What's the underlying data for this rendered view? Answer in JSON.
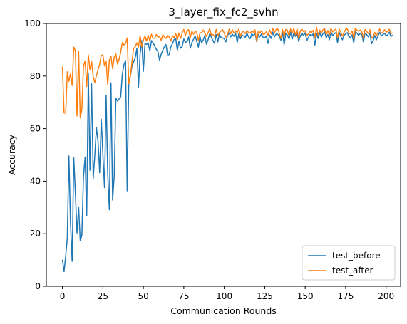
{
  "chart_data": {
    "type": "line",
    "title": "3_layer_fix_fc2_svhn",
    "xlabel": "Communication Rounds",
    "ylabel": "Accuracy",
    "xlim": [
      -9.95,
      208.95
    ],
    "ylim": [
      0,
      100
    ],
    "xticks": [
      "0",
      "25",
      "50",
      "75",
      "100",
      "125",
      "150",
      "175",
      "200"
    ],
    "yticks": [
      "0",
      "20",
      "40",
      "60",
      "80",
      "100"
    ],
    "grid": false,
    "legend_position": "lower-right",
    "series": [
      {
        "name": "test_before",
        "color": "#1f77b4",
        "values": [
          10.1,
          5.6,
          11.4,
          18.3,
          49.6,
          23.8,
          9.5,
          48.9,
          35.6,
          20.3,
          30.2,
          17.3,
          19.4,
          41.8,
          49.2,
          26.8,
          80.9,
          44.1,
          77.3,
          40.9,
          50.0,
          60.4,
          55.0,
          43.2,
          63.6,
          50.0,
          37.5,
          72.6,
          42.4,
          29.1,
          77.4,
          32.8,
          42.1,
          71.5,
          70.5,
          71.3,
          72.1,
          80.6,
          84.3,
          85.9,
          36.3,
          78.0,
          80.1,
          83.9,
          85.4,
          87.0,
          90.6,
          75.8,
          88.5,
          93.5,
          81.8,
          92.4,
          92.0,
          92.6,
          89.6,
          93.5,
          92.7,
          91.4,
          90.2,
          89.4,
          86.0,
          88.3,
          89.8,
          91.2,
          92.0,
          88.0,
          88.2,
          91.2,
          92.3,
          93.9,
          94.4,
          89.8,
          93.3,
          90.6,
          91.2,
          94.1,
          92.8,
          93.1,
          94.9,
          90.6,
          92.7,
          94.0,
          95.3,
          93.2,
          91.0,
          95.0,
          92.6,
          93.7,
          95.4,
          92.1,
          93.8,
          96.1,
          94.9,
          93.5,
          92.4,
          95.8,
          93.0,
          95.9,
          94.7,
          94.5,
          94.2,
          93.0,
          95.4,
          96.4,
          94.9,
          95.9,
          95.1,
          96.4,
          92.8,
          96.2,
          94.2,
          95.6,
          95.2,
          94.7,
          96.3,
          94.9,
          94.2,
          96.1,
          95.3,
          96.4,
          93.1,
          95.8,
          94.9,
          96.0,
          94.7,
          94.5,
          95.3,
          92.4,
          95.6,
          94.3,
          96.7,
          94.9,
          96.0,
          95.9,
          95.2,
          93.6,
          96.6,
          92.0,
          96.2,
          95.6,
          94.1,
          96.7,
          94.1,
          96.4,
          95.1,
          96.5,
          93.2,
          95.2,
          96.3,
          95.4,
          96.5,
          93.5,
          94.7,
          95.8,
          95.3,
          96.1,
          91.8,
          96.3,
          94.3,
          96.6,
          94.8,
          96.2,
          96.8,
          94.6,
          95.8,
          93.8,
          96.7,
          95.4,
          96.1,
          96.6,
          92.7,
          96.6,
          95.1,
          93.8,
          95.4,
          96.1,
          96.5,
          95.1,
          94.6,
          95.7,
          92.7,
          96.9,
          96.3,
          95.5,
          96.2,
          95.8,
          93.0,
          96.3,
          95.8,
          94.9,
          96.4,
          92.3,
          93.5,
          95.4,
          93.8,
          95.4,
          96.6,
          95.4,
          95.7,
          96.3,
          95.4,
          95.6,
          96.7,
          95.0,
          95.6
        ],
        "x_start": 0
      },
      {
        "name": "test_after",
        "color": "#ff7f0e",
        "values": [
          83.6,
          66.0,
          65.8,
          81.6,
          78.0,
          81.0,
          76.4,
          91.0,
          89.7,
          64.8,
          89.3,
          64.1,
          67.2,
          83.9,
          85.7,
          76.0,
          88.0,
          82.3,
          85.6,
          79.9,
          77.5,
          80.2,
          82.3,
          84.5,
          87.9,
          88.0,
          83.9,
          85.6,
          76.6,
          86.1,
          87.5,
          82.8,
          87.2,
          88.4,
          84.6,
          86.3,
          89.1,
          92.7,
          91.8,
          92.4,
          94.5,
          77.1,
          80.1,
          85.7,
          90.5,
          91.2,
          92.6,
          91.1,
          95.4,
          91.1,
          93.6,
          95.3,
          93.3,
          95.5,
          93.3,
          95.9,
          94.3,
          94.4,
          95.8,
          94.8,
          95.0,
          93.6,
          95.7,
          94.8,
          94.3,
          95.5,
          94.8,
          93.3,
          95.3,
          94.6,
          96.3,
          93.8,
          96.4,
          94.3,
          96.4,
          97.7,
          95.4,
          97.4,
          97.6,
          94.6,
          97.1,
          95.9,
          97.0,
          96.6,
          93.5,
          96.5,
          96.4,
          97.5,
          96.4,
          95.1,
          96.5,
          98.0,
          95.6,
          95.8,
          95.0,
          97.7,
          95.3,
          96.6,
          97.1,
          97.6,
          96.3,
          94.8,
          95.7,
          97.8,
          96.1,
          97.6,
          96.3,
          97.2,
          96.5,
          97.9,
          95.1,
          96.7,
          96.9,
          96.2,
          97.3,
          96.5,
          96.3,
          97.1,
          96.7,
          97.6,
          93.3,
          97.1,
          96.4,
          97.3,
          95.9,
          96.0,
          96.9,
          95.5,
          97.6,
          96.0,
          98.1,
          96.5,
          97.7,
          98.0,
          96.2,
          94.3,
          97.7,
          95.1,
          97.7,
          97.4,
          95.3,
          97.9,
          96.3,
          98.1,
          95.7,
          97.9,
          94.2,
          97.2,
          97.8,
          96.9,
          97.3,
          95.5,
          96.0,
          96.9,
          96.6,
          97.4,
          94.6,
          98.6,
          95.5,
          97.5,
          96.4,
          97.6,
          98.0,
          95.7,
          97.3,
          95.5,
          98.1,
          96.8,
          97.5,
          97.8,
          94.4,
          97.9,
          96.6,
          95.2,
          96.6,
          97.7,
          97.9,
          96.4,
          96.0,
          97.2,
          94.3,
          98.2,
          97.4,
          97.1,
          97.5,
          96.9,
          94.4,
          97.7,
          97.0,
          96.2,
          97.6,
          94.4,
          94.9,
          96.6,
          95.3,
          96.6,
          97.9,
          96.4,
          96.6,
          97.6,
          96.7,
          97.0,
          97.8,
          96.1,
          96.4
        ],
        "x_start": 0
      }
    ]
  }
}
